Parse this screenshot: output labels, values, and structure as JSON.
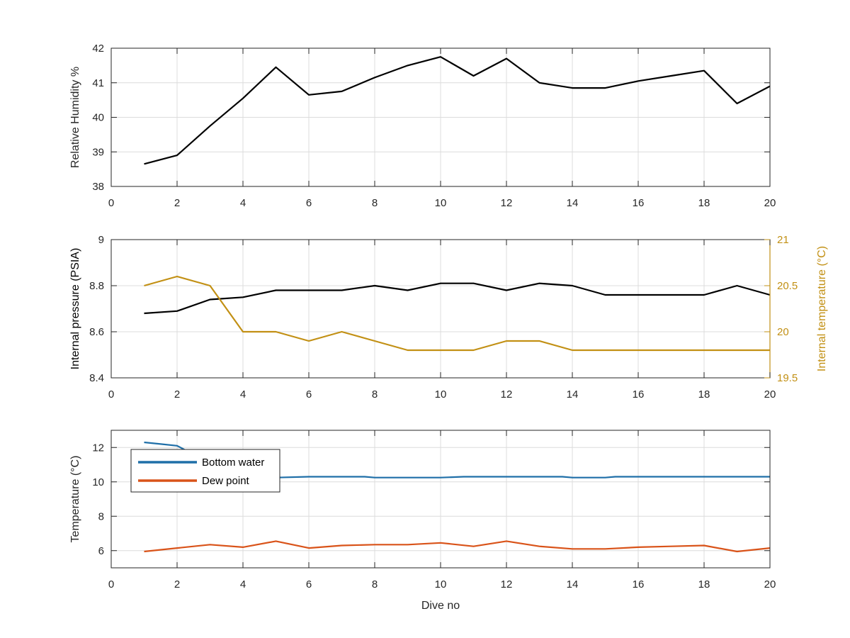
{
  "chart_data": [
    {
      "type": "line",
      "xlabel": "",
      "ylabel": "Relative Humidity %",
      "xlim": [
        0,
        20
      ],
      "ylim": [
        38,
        42
      ],
      "xticks": [
        0,
        2,
        4,
        6,
        8,
        10,
        12,
        14,
        16,
        18,
        20
      ],
      "yticks": [
        38,
        39,
        40,
        41,
        42
      ],
      "grid": true,
      "series": [
        {
          "color": "#000000",
          "x": [
            1,
            2,
            3,
            4,
            5,
            6,
            7,
            8,
            9,
            10,
            11,
            12,
            13,
            14,
            15,
            16,
            17,
            18,
            19,
            20
          ],
          "values": [
            38.65,
            38.9,
            39.75,
            40.55,
            41.45,
            40.65,
            40.75,
            41.15,
            41.5,
            41.75,
            41.2,
            41.7,
            41.0,
            40.85,
            40.85,
            41.05,
            41.2,
            41.35,
            40.4,
            40.9
          ]
        }
      ]
    },
    {
      "type": "line",
      "xlabel": "",
      "ylabel": "Internal pressure (PSIA)",
      "y2label": "Internal temperature (°C)",
      "xlim": [
        0,
        20
      ],
      "ylim": [
        8.4,
        9
      ],
      "y2lim": [
        19.5,
        21
      ],
      "xticks": [
        0,
        2,
        4,
        6,
        8,
        10,
        12,
        14,
        16,
        18,
        20
      ],
      "yticks": [
        8.4,
        8.6,
        8.8,
        9
      ],
      "y2ticks": [
        19.5,
        20,
        20.5,
        21
      ],
      "grid": true,
      "series": [
        {
          "axis": "left",
          "color": "#000000",
          "x": [
            1,
            2,
            3,
            4,
            5,
            6,
            7,
            8,
            9,
            10,
            11,
            12,
            13,
            14,
            15,
            16,
            17,
            18,
            19,
            20
          ],
          "values": [
            8.68,
            8.69,
            8.74,
            8.75,
            8.78,
            8.78,
            8.78,
            8.8,
            8.78,
            8.81,
            8.81,
            8.78,
            8.81,
            8.8,
            8.76,
            8.76,
            8.76,
            8.76,
            8.8,
            8.76
          ]
        },
        {
          "axis": "right",
          "color": "#C29014",
          "x": [
            1,
            2,
            3,
            4,
            5,
            6,
            7,
            8,
            9,
            10,
            11,
            12,
            13,
            14,
            15,
            16,
            17,
            18,
            19,
            20
          ],
          "values": [
            20.5,
            20.6,
            20.5,
            20.0,
            20.0,
            19.9,
            20.0,
            19.9,
            19.8,
            19.8,
            19.8,
            19.9,
            19.9,
            19.8,
            19.8,
            19.8,
            19.8,
            19.8,
            19.8,
            19.8
          ]
        }
      ]
    },
    {
      "type": "line",
      "xlabel": "Dive no",
      "ylabel": "Temperature (°C)",
      "xlim": [
        0,
        20
      ],
      "ylim": [
        5,
        13
      ],
      "xticks": [
        0,
        2,
        4,
        6,
        8,
        10,
        12,
        14,
        16,
        18,
        20
      ],
      "yticks": [
        6,
        8,
        10,
        12
      ],
      "grid": true,
      "legend": "top-left",
      "series": [
        {
          "name": "Bottom water",
          "color": "#1F6FA8",
          "x": [
            1,
            1.5,
            2,
            2.3,
            2.5,
            3,
            4,
            5,
            6,
            7,
            7.7,
            8,
            9,
            10,
            10.7,
            11,
            12,
            13,
            13.7,
            14,
            15,
            15.3,
            16,
            17,
            18,
            19,
            20
          ],
          "values": [
            12.3,
            12.2,
            12.1,
            11.8,
            11.7,
            10.25,
            10.25,
            10.25,
            10.3,
            10.3,
            10.3,
            10.25,
            10.25,
            10.25,
            10.3,
            10.3,
            10.3,
            10.3,
            10.3,
            10.25,
            10.25,
            10.3,
            10.3,
            10.3,
            10.3,
            10.3,
            10.3
          ]
        },
        {
          "name": "Dew point",
          "color": "#D95319",
          "x": [
            1,
            2,
            3,
            4,
            5,
            6,
            7,
            8,
            9,
            10,
            11,
            12,
            13,
            14,
            15,
            16,
            17,
            18,
            19,
            20
          ],
          "values": [
            5.95,
            6.15,
            6.35,
            6.2,
            6.55,
            6.15,
            6.3,
            6.35,
            6.35,
            6.45,
            6.25,
            6.55,
            6.25,
            6.1,
            6.1,
            6.2,
            6.25,
            6.3,
            5.95,
            6.15
          ]
        }
      ]
    }
  ]
}
